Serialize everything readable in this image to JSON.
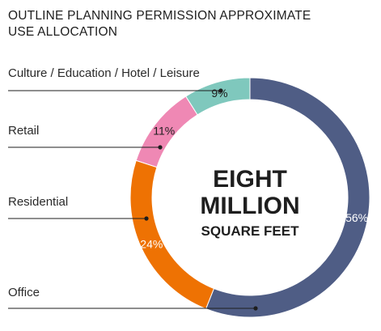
{
  "chart_data": {
    "type": "pie",
    "title_lines": [
      "OUTLINE PLANNING PERMISSION APPROXIMATE",
      "USE ALLOCATION"
    ],
    "center_text": {
      "line1": "EIGHT",
      "line2": "MILLION",
      "line3": "SQUARE FEET"
    },
    "slices": [
      {
        "category": "Office",
        "value": 56,
        "label": "56%",
        "color": "#4f5d85",
        "label_color": "#ffffff"
      },
      {
        "category": "Residential",
        "value": 24,
        "label": "24%",
        "color": "#ee7203",
        "label_color": "#ffffff"
      },
      {
        "category": "Retail",
        "value": 11,
        "label": "11%",
        "color": "#ef88b4",
        "label_color": "#1e1e1e"
      },
      {
        "category": "Culture / Education / Hotel / Leisure",
        "value": 9,
        "label": "9%",
        "color": "#7fc8bd",
        "label_color": "#1e1e1e"
      }
    ],
    "legend": "callout-left"
  }
}
